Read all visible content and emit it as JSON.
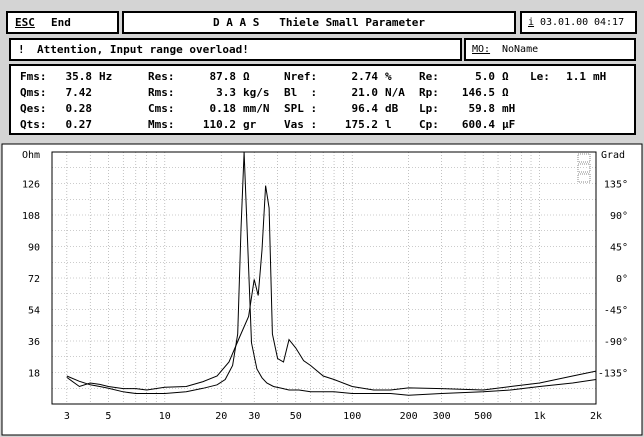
{
  "topbar": {
    "esc_label": "ESC",
    "end_label": "End",
    "title": "D A A S   Thiele Small Parameter",
    "info_label": "i",
    "date": "03.01.00",
    "time": "04:17"
  },
  "status": {
    "icon": "exclamation-icon",
    "message": "Attention, Input range overload!",
    "mo_label": "MO:",
    "mo_value": "NoName"
  },
  "params": {
    "fms": {
      "label": "Fms:",
      "value": "35.8",
      "unit": "Hz"
    },
    "qms": {
      "label": "Qms:",
      "value": "7.42",
      "unit": ""
    },
    "qes": {
      "label": "Qes:",
      "value": "0.28",
      "unit": ""
    },
    "qts": {
      "label": "Qts:",
      "value": "0.27",
      "unit": ""
    },
    "res": {
      "label": "Res:",
      "value": "87.8",
      "unit": "Ω"
    },
    "rms": {
      "label": "Rms:",
      "value": "3.3",
      "unit": "kg/s"
    },
    "cms": {
      "label": "Cms:",
      "value": "0.18",
      "unit": "mm/N"
    },
    "mms": {
      "label": "Mms:",
      "value": "110.2",
      "unit": "gr"
    },
    "nref": {
      "label": "Nref:",
      "value": "2.74",
      "unit": "%"
    },
    "bl": {
      "label": "Bl  :",
      "value": "21.0",
      "unit": "N/A"
    },
    "spl": {
      "label": "SPL :",
      "value": "96.4",
      "unit": "dB"
    },
    "vas": {
      "label": "Vas :",
      "value": "175.2",
      "unit": "l"
    },
    "re": {
      "label": "Re:",
      "value": "5.0",
      "unit": "Ω"
    },
    "rp": {
      "label": "Rp:",
      "value": "146.5",
      "unit": "Ω"
    },
    "lp": {
      "label": "Lp:",
      "value": "59.8",
      "unit": "mH"
    },
    "cp": {
      "label": "Cp:",
      "value": "600.4",
      "unit": "µF"
    },
    "le": {
      "label": "Le:",
      "value": "1.1",
      "unit": "mH"
    }
  },
  "chart_data": {
    "type": "line",
    "x_scale": "log",
    "grid": true,
    "xlim": [
      2.5,
      2000
    ],
    "ylim": [
      0,
      144
    ],
    "y2lim": [
      -180,
      180
    ],
    "ylabel": "Ohm",
    "y2label": "Grad",
    "x_ticks": [
      3,
      5,
      10,
      20,
      30,
      50,
      100,
      200,
      300,
      500,
      1000,
      2000
    ],
    "x_tick_labels": [
      "3",
      "5",
      "10",
      "20",
      "30",
      "50",
      "100",
      "200",
      "300",
      "500",
      "1k",
      "2k"
    ],
    "y_ticks": [
      18,
      36,
      54,
      72,
      90,
      108,
      126
    ],
    "y_tick_labels": [
      "18",
      "36",
      "54",
      "72",
      "90",
      "108",
      "126"
    ],
    "y2_ticks": [
      -135,
      -90,
      -45,
      0,
      45,
      90,
      135
    ],
    "y2_tick_labels": [
      "-135°",
      "-90°",
      "-45°",
      "0°",
      "45°",
      "90°",
      "135°"
    ],
    "series": [
      {
        "x": [
          3,
          3.5,
          4,
          4.5,
          5,
          6,
          7,
          8,
          10,
          13,
          16,
          19,
          21,
          23,
          24.5,
          25.5,
          26.5,
          27.5,
          29,
          31,
          33,
          35,
          38,
          42,
          46,
          52,
          60,
          70,
          80,
          100,
          130,
          160,
          200,
          300,
          500,
          700,
          1000,
          1500,
          2000
        ],
        "values": [
          16,
          13,
          11,
          10,
          9,
          7,
          6,
          6,
          6,
          7,
          9,
          11,
          14,
          22,
          40,
          100,
          144,
          100,
          35,
          20,
          15,
          12,
          10,
          9,
          8,
          8,
          7,
          7,
          7,
          6,
          6,
          6,
          5,
          6,
          7,
          8,
          10,
          12,
          14
        ],
        "color": "#000000"
      },
      {
        "x": [
          3,
          3.5,
          4,
          4.5,
          5,
          6,
          7,
          8,
          10,
          13,
          16,
          19,
          22,
          25,
          28,
          30,
          31.5,
          33,
          34.5,
          36,
          37.5,
          40,
          43,
          46,
          50,
          55,
          60,
          70,
          80,
          100,
          130,
          160,
          200,
          300,
          500,
          700,
          1000,
          1500,
          2000
        ],
        "values": [
          -142,
          -155,
          -150,
          -152,
          -155,
          -158,
          -158,
          -160,
          -156,
          -155,
          -148,
          -140,
          -120,
          -85,
          -55,
          -2,
          -25,
          40,
          132,
          100,
          -80,
          -115,
          -120,
          -88,
          -100,
          -118,
          -125,
          -140,
          -145,
          -155,
          -160,
          -160,
          -157,
          -158,
          -160,
          -155,
          -150,
          -140,
          -133
        ],
        "axis": "right",
        "color": "#000000"
      }
    ]
  }
}
